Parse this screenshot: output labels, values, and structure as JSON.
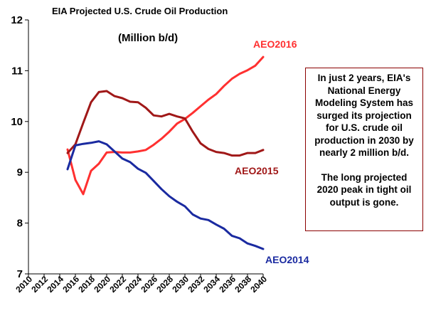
{
  "chart_data": {
    "type": "line",
    "title": "EIA Projected U.S. Crude Oil Production",
    "subtitle": "(Million b/d)",
    "ylim": [
      7,
      12
    ],
    "yticks": [
      7,
      8,
      9,
      10,
      11,
      12
    ],
    "xlim": [
      2010,
      2040
    ],
    "xticks": [
      "2010",
      "2012",
      "2014",
      "2016",
      "2018",
      "2020",
      "2022",
      "2024",
      "2026",
      "2028",
      "2030",
      "2032",
      "2034",
      "2036",
      "2038",
      "2040"
    ],
    "series": [
      {
        "name": "AEO2016",
        "color": "#ff3030",
        "x": [
          2015,
          2016,
          2017,
          2018,
          2019,
          2020,
          2021,
          2022,
          2023,
          2024,
          2025,
          2026,
          2027,
          2028,
          2029,
          2030,
          2031,
          2032,
          2033,
          2034,
          2035,
          2036,
          2037,
          2038,
          2039,
          2040
        ],
        "y": [
          9.45,
          8.85,
          8.57,
          9.03,
          9.17,
          9.39,
          9.4,
          9.39,
          9.39,
          9.41,
          9.44,
          9.54,
          9.66,
          9.8,
          9.96,
          10.05,
          10.17,
          10.3,
          10.43,
          10.54,
          10.7,
          10.84,
          10.94,
          11.01,
          11.1,
          11.27
        ]
      },
      {
        "name": "AEO2015",
        "color": "#a01818",
        "x": [
          2015,
          2016,
          2017,
          2018,
          2019,
          2020,
          2021,
          2022,
          2023,
          2024,
          2025,
          2026,
          2027,
          2028,
          2029,
          2030,
          2031,
          2032,
          2033,
          2034,
          2035,
          2036,
          2037,
          2038,
          2039,
          2040
        ],
        "y": [
          9.38,
          9.55,
          9.97,
          10.38,
          10.58,
          10.6,
          10.5,
          10.46,
          10.39,
          10.38,
          10.27,
          10.12,
          10.1,
          10.15,
          10.1,
          10.06,
          9.8,
          9.57,
          9.46,
          9.4,
          9.38,
          9.33,
          9.33,
          9.38,
          9.38,
          9.44
        ]
      },
      {
        "name": "AEO2014",
        "color": "#1a2aa0",
        "x": [
          2015,
          2016,
          2017,
          2018,
          2019,
          2020,
          2021,
          2022,
          2023,
          2024,
          2025,
          2026,
          2027,
          2028,
          2029,
          2030,
          2031,
          2032,
          2033,
          2034,
          2035,
          2036,
          2037,
          2038,
          2039,
          2040
        ],
        "y": [
          9.06,
          9.53,
          9.56,
          9.58,
          9.61,
          9.55,
          9.41,
          9.27,
          9.2,
          9.07,
          8.99,
          8.83,
          8.67,
          8.53,
          8.42,
          8.33,
          8.17,
          8.09,
          8.06,
          7.97,
          7.89,
          7.75,
          7.7,
          7.6,
          7.55,
          7.49
        ]
      }
    ]
  },
  "note": {
    "paragraph1": "In just 2 years, EIA's National Energy Modeling System has surged its projection for U.S. crude oil production in 2030 by nearly 2 million b/d.",
    "paragraph2": "The long projected 2020 peak in tight oil output is gone.",
    "border_color": "#8b0000"
  }
}
